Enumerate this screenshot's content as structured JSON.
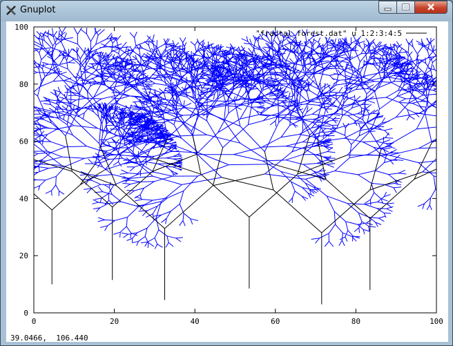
{
  "window": {
    "title": "Gnuplot",
    "icon": "gnuplot-x-icon"
  },
  "status_bar": {
    "coordinates": "39.0466,  106.440"
  },
  "chart_data": {
    "type": "line",
    "title": "",
    "xlabel": "",
    "ylabel": "",
    "xlim": [
      0,
      100
    ],
    "ylim": [
      0,
      100
    ],
    "x_ticks": [
      "0",
      "20",
      "40",
      "60",
      "80",
      "100"
    ],
    "y_ticks": [
      "0",
      "20",
      "40",
      "60",
      "80",
      "100"
    ],
    "grid": false,
    "legend": {
      "position": "top-right",
      "entries": [
        "\"fractal_forest.dat\" u 1:2:3:4:5"
      ]
    },
    "colors": {
      "trunk": "#000000",
      "leaves": "#0000ff"
    },
    "trees": [
      {
        "x": 4.5,
        "y_base": 10,
        "y_split": 36,
        "spread": 7,
        "angle": 14
      },
      {
        "x": 19.5,
        "y_base": 11.5,
        "y_split": 37,
        "spread": 10,
        "angle": 21
      },
      {
        "x": 32.5,
        "y_base": 4.5,
        "y_split": 29.5,
        "spread": 12,
        "angle": 27
      },
      {
        "x": 53.5,
        "y_base": 8.5,
        "y_split": 33.5,
        "spread": 12,
        "angle": 25
      },
      {
        "x": 71.5,
        "y_base": 3,
        "y_split": 28,
        "spread": 12,
        "angle": 28
      },
      {
        "x": 83.5,
        "y_base": 8,
        "y_split": 33,
        "spread": 11,
        "angle": 23
      }
    ]
  }
}
